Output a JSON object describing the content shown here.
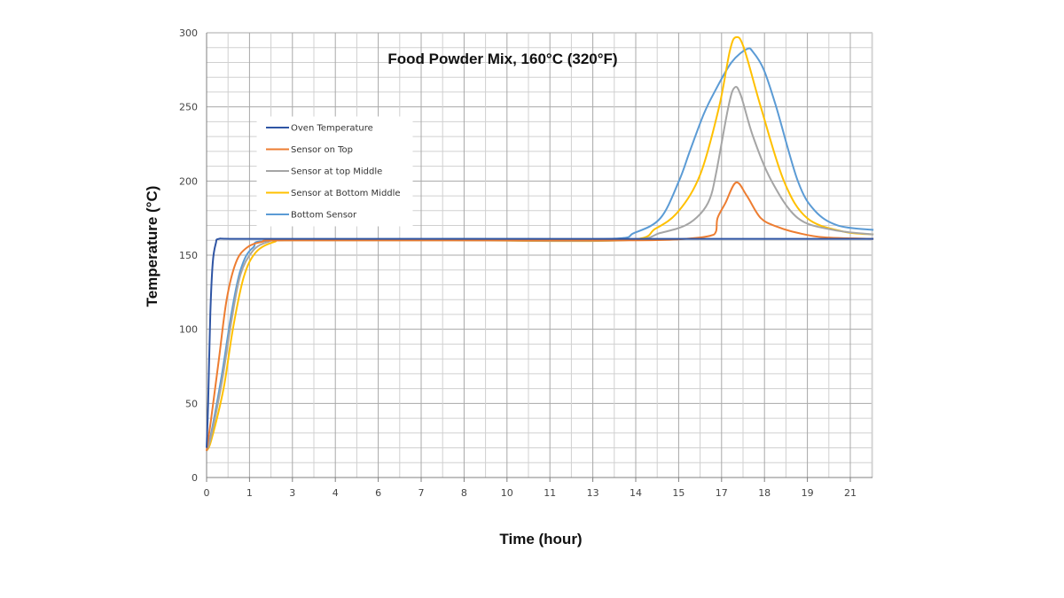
{
  "chart_data": {
    "type": "line",
    "title": "Food Powder Mix, 160°C (320°F)",
    "xlabel": "Time (hour)",
    "ylabel": "Temperature (°C)",
    "xlim": [
      0,
      21.6
    ],
    "ylim": [
      0,
      300
    ],
    "x_tick_labels": [
      "0",
      "1",
      "3",
      "4",
      "6",
      "7",
      "8",
      "10",
      "11",
      "13",
      "14",
      "15",
      "17",
      "18",
      "19",
      "21"
    ],
    "y_ticks": [
      0,
      50,
      100,
      150,
      200,
      250,
      300
    ],
    "grid": true,
    "legend_position": "upper-left inside",
    "series": [
      {
        "name": "Oven Temperature",
        "color": "#2f55a4",
        "x": [
          0,
          0.05,
          0.12,
          0.2,
          0.3,
          0.4,
          1,
          5,
          10,
          15,
          21.6
        ],
        "y": [
          20,
          50,
          110,
          145,
          158,
          161,
          161,
          161,
          161,
          161,
          161
        ]
      },
      {
        "name": "Sensor on Top",
        "color": "#ed7d31",
        "x": [
          0,
          0.15,
          0.4,
          0.65,
          0.95,
          1.3,
          1.8,
          2.5,
          8,
          14,
          15.5,
          16.3,
          16.5,
          16.55,
          16.8,
          17.15,
          17.5,
          17.95,
          18.5,
          19.15,
          20,
          21.6
        ],
        "y": [
          18,
          40,
          80,
          120,
          145,
          155,
          159,
          160,
          160,
          160,
          161,
          163,
          166,
          175,
          185,
          199,
          190,
          175,
          169,
          165,
          162,
          161
        ]
      },
      {
        "name": "Sensor at top Middle",
        "color": "#a5a5a5",
        "x": [
          0,
          0.15,
          0.5,
          0.8,
          1.1,
          1.5,
          2,
          2.6,
          8,
          13.5,
          14.7,
          15.5,
          16,
          16.3,
          16.5,
          16.9,
          17.1,
          17.3,
          17.7,
          18.3,
          19.15,
          20.3,
          21.6
        ],
        "y": [
          18,
          28,
          65,
          105,
          137,
          153,
          159,
          160,
          160,
          160,
          165,
          170,
          178,
          188,
          205,
          250,
          263,
          258,
          230,
          200,
          175,
          167,
          164
        ]
      },
      {
        "name": "Sensor at Bottom Middle",
        "color": "#ffc000",
        "x": [
          0,
          0.15,
          0.55,
          0.85,
          1.2,
          1.6,
          2.2,
          2.8,
          8,
          13.5,
          14.55,
          15.3,
          16,
          16.6,
          16.95,
          17.15,
          17.4,
          17.95,
          18.7,
          19.45,
          20.6,
          21.6
        ],
        "y": [
          18,
          25,
          60,
          100,
          135,
          152,
          159,
          160,
          160,
          160,
          168,
          180,
          205,
          250,
          288,
          297,
          290,
          250,
          200,
          175,
          166,
          164
        ]
      },
      {
        "name": "Bottom Sensor",
        "color": "#5b9bd5",
        "x": [
          0,
          0.15,
          0.5,
          0.8,
          1.1,
          1.5,
          2.3,
          8,
          13,
          13.85,
          14.7,
          15.3,
          15.65,
          16.1,
          16.45,
          17,
          17.5,
          17.7,
          18.05,
          18.45,
          19.15,
          19.7,
          20.45,
          21.6
        ],
        "y": [
          18,
          30,
          70,
          110,
          140,
          155,
          160,
          161,
          161,
          165,
          175,
          200,
          220,
          245,
          260,
          280,
          289,
          287,
          275,
          250,
          200,
          180,
          170,
          167
        ]
      }
    ]
  }
}
